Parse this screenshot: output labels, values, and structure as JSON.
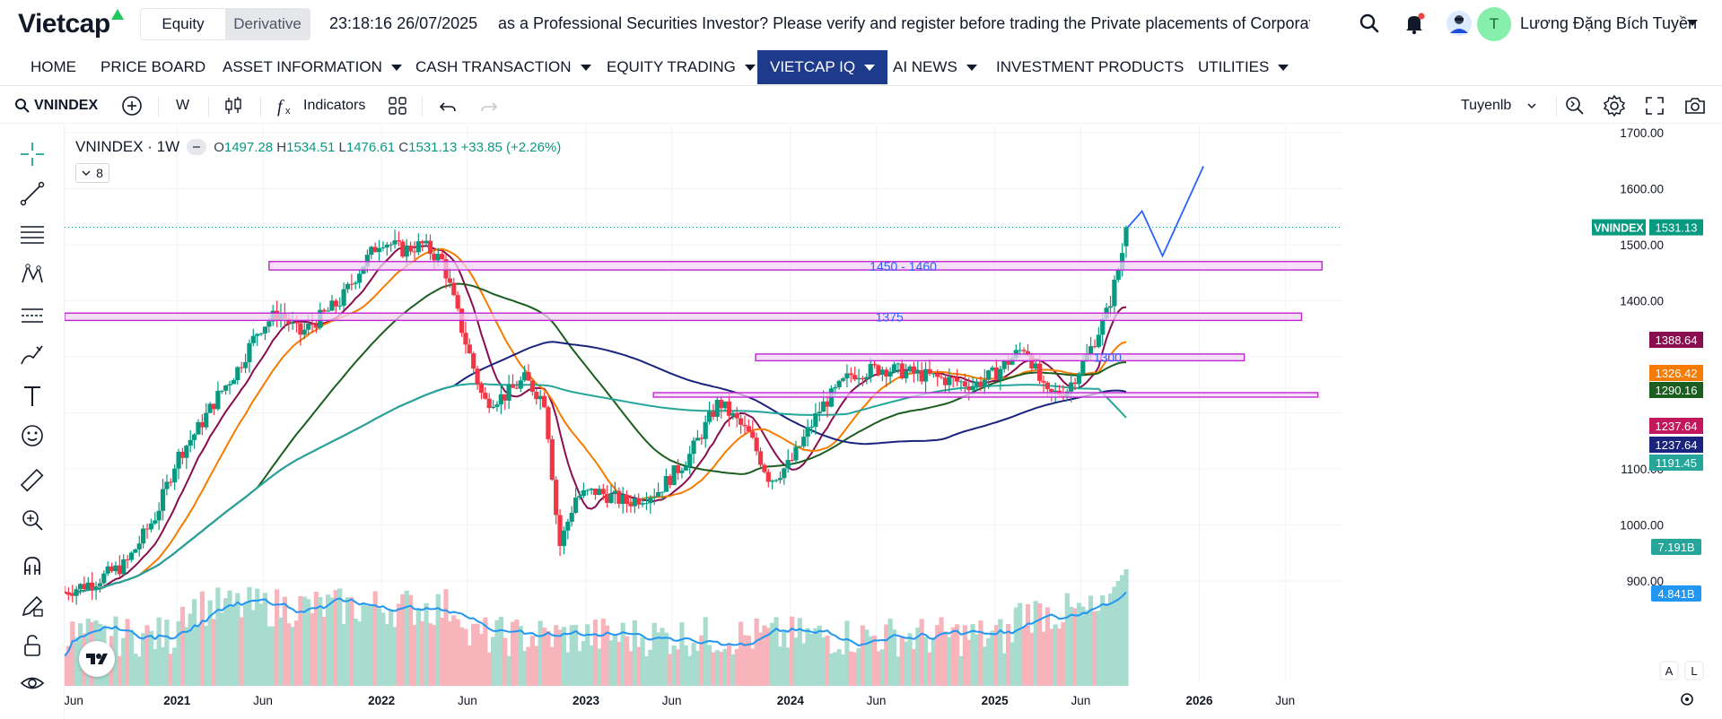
{
  "header": {
    "logo_text": "Vietcap",
    "market_tabs": [
      {
        "label": "Equity",
        "active": true
      },
      {
        "label": "Derivative",
        "active": false
      }
    ],
    "clock": "23:18:16 26/07/2025",
    "marquee": "as a Professional Securities Investor? Please verify and register before trading the Private placements of Corporate bo",
    "icons": [
      "search-icon",
      "bell-icon",
      "profile-photo-icon"
    ],
    "user": {
      "initial": "T",
      "name": "Lương Đặng Bích Tuyền"
    }
  },
  "nav": {
    "items": [
      {
        "label": "HOME",
        "dropdown": false
      },
      {
        "label": "PRICE BOARD",
        "dropdown": false
      },
      {
        "label": "ASSET INFORMATION",
        "dropdown": true
      },
      {
        "label": "CASH TRANSACTION",
        "dropdown": true
      },
      {
        "label": "EQUITY TRADING",
        "dropdown": true
      },
      {
        "label": "VIETCAP IQ",
        "dropdown": true,
        "active": true
      },
      {
        "label": "AI NEWS",
        "dropdown": true
      },
      {
        "label": "INVESTMENT PRODUCTS",
        "dropdown": false
      },
      {
        "label": "UTILITIES",
        "dropdown": true
      }
    ]
  },
  "toolbar": {
    "symbol": "VNINDEX",
    "interval": "W",
    "indicators_label": "Indicators",
    "layout_name": "Tuyenlb"
  },
  "legend": {
    "symbol_label": "VNINDEX · 1W",
    "o_label": "O",
    "o": "1497.28",
    "h_label": "H",
    "h": "1534.51",
    "l_label": "L",
    "l": "1476.61",
    "c_label": "C",
    "c": "1531.13",
    "change": "+33.85 (+2.26%)",
    "collapse_count": "8"
  },
  "chart_data": {
    "type": "candlestick",
    "symbol": "VNINDEX",
    "interval": "1W",
    "y_axis": {
      "ticks": [
        "1700.00",
        "1600.00",
        "1500.00",
        "1400.00",
        "1100.00",
        "1000.00",
        "900.00"
      ],
      "range": [
        840,
        1720
      ]
    },
    "x_axis": {
      "ticks": [
        "Jun",
        "2021",
        "Jun",
        "2022",
        "Jun",
        "2023",
        "Jun",
        "2024",
        "Jun",
        "2025",
        "Jun",
        "2026",
        "Jun"
      ]
    },
    "price_path": [
      [
        2020.45,
        880
      ],
      [
        2020.6,
        900
      ],
      [
        2020.75,
        930
      ],
      [
        2020.9,
        1020
      ],
      [
        2021.0,
        1120
      ],
      [
        2021.1,
        1170
      ],
      [
        2021.2,
        1230
      ],
      [
        2021.3,
        1280
      ],
      [
        2021.4,
        1350
      ],
      [
        2021.5,
        1380
      ],
      [
        2021.6,
        1340
      ],
      [
        2021.7,
        1370
      ],
      [
        2021.8,
        1400
      ],
      [
        2021.9,
        1460
      ],
      [
        2022.0,
        1510
      ],
      [
        2022.1,
        1490
      ],
      [
        2022.2,
        1500
      ],
      [
        2022.3,
        1470
      ],
      [
        2022.4,
        1340
      ],
      [
        2022.5,
        1220
      ],
      [
        2022.6,
        1230
      ],
      [
        2022.7,
        1260
      ],
      [
        2022.8,
        1220
      ],
      [
        2022.87,
        960
      ],
      [
        2022.95,
        1050
      ],
      [
        2023.05,
        1060
      ],
      [
        2023.2,
        1040
      ],
      [
        2023.35,
        1060
      ],
      [
        2023.5,
        1120
      ],
      [
        2023.65,
        1220
      ],
      [
        2023.8,
        1160
      ],
      [
        2023.9,
        1080
      ],
      [
        2024.0,
        1110
      ],
      [
        2024.15,
        1210
      ],
      [
        2024.3,
        1270
      ],
      [
        2024.45,
        1280
      ],
      [
        2024.6,
        1270
      ],
      [
        2024.75,
        1260
      ],
      [
        2024.9,
        1250
      ],
      [
        2025.0,
        1270
      ],
      [
        2025.15,
        1320
      ],
      [
        2025.25,
        1230
      ],
      [
        2025.35,
        1240
      ],
      [
        2025.45,
        1300
      ],
      [
        2025.55,
        1380
      ],
      [
        2025.6,
        1450
      ],
      [
        2025.65,
        1531
      ]
    ],
    "moving_averages": [
      {
        "color": "#880e4f",
        "last": 1388.64
      },
      {
        "color": "#f57c00",
        "last": 1326.42
      },
      {
        "color": "#1b5e20",
        "last": 1290.16
      },
      {
        "color": "#1a237e",
        "last": 1237.64
      },
      {
        "color": "#26a69a",
        "last": 1191.45
      }
    ],
    "zones": [
      {
        "from": 2021.45,
        "to": 2026.6,
        "low": 1455,
        "high": 1470,
        "label": "1450 - 1460"
      },
      {
        "from": 2020.45,
        "to": 2026.5,
        "low": 1365,
        "high": 1378,
        "label": "1375"
      },
      {
        "from": 2023.83,
        "to": 2026.22,
        "low": 1293,
        "high": 1305,
        "label": "1300"
      },
      {
        "from": 2023.33,
        "to": 2026.58,
        "low": 1228,
        "high": 1236,
        "label": ""
      }
    ],
    "projection": [
      [
        2025.65,
        1531
      ],
      [
        2025.72,
        1560
      ],
      [
        2025.82,
        1480
      ],
      [
        2026.02,
        1640
      ]
    ],
    "last_price_label": {
      "name": "VNINDEX",
      "value": "1531.13",
      "color": "#089981"
    },
    "price_labels": [
      {
        "value": "1388.64",
        "color": "#880e4f"
      },
      {
        "value": "1326.42",
        "color": "#f57c00"
      },
      {
        "value": "1290.16",
        "color": "#1b5e20"
      },
      {
        "value": "1237.64",
        "color": "#c2185b"
      },
      {
        "value": "1237.64",
        "color": "#1a237e"
      },
      {
        "value": "1191.45",
        "color": "#26a69a"
      }
    ],
    "volume_labels": [
      {
        "value": "7.191B",
        "color": "#26a69a"
      },
      {
        "value": "4.841B",
        "color": "#2196f3"
      }
    ],
    "volume_path_note": "",
    "volume_ma_color": "#2196f3"
  },
  "colors": {
    "up": "#089981",
    "down": "#f23645",
    "zone_fill": "#f3d6f5",
    "zone_stroke": "#c026d3",
    "zone_text": "#2962ff",
    "projection": "#2962ff",
    "nav_active": "#1e3a8a"
  }
}
